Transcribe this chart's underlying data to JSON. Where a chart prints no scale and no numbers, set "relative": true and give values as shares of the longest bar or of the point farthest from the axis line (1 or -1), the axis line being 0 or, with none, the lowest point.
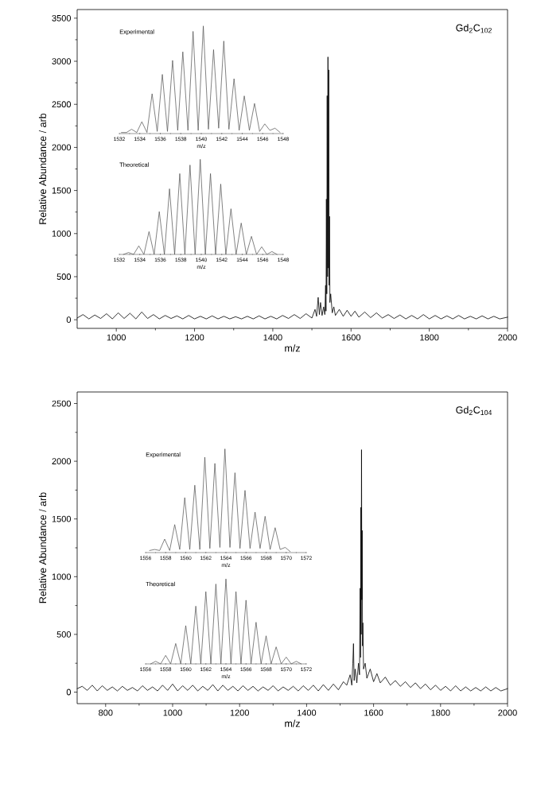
{
  "chart_data": [
    {
      "type": "line",
      "title": "Gd$_{2}$C$_{102}$",
      "xlabel": "m/z",
      "ylabel": "Relative Abundance / arb",
      "color": "#000000",
      "xlim": [
        900,
        2000
      ],
      "ylim": [
        -100,
        3600
      ],
      "xticks": [
        1000,
        1200,
        1400,
        1600,
        1800,
        2000
      ],
      "yticks": [
        0,
        500,
        1000,
        1500,
        2000,
        2500,
        3000,
        3500
      ],
      "x": [
        900,
        915,
        930,
        945,
        960,
        975,
        990,
        1005,
        1020,
        1035,
        1050,
        1065,
        1080,
        1095,
        1110,
        1125,
        1140,
        1155,
        1170,
        1185,
        1200,
        1215,
        1230,
        1245,
        1260,
        1275,
        1290,
        1305,
        1320,
        1335,
        1350,
        1365,
        1380,
        1395,
        1410,
        1425,
        1440,
        1455,
        1470,
        1485,
        1500,
        1508,
        1512,
        1516,
        1519,
        1522,
        1526,
        1530,
        1533,
        1535,
        1536,
        1537,
        1538,
        1539,
        1540,
        1541,
        1542,
        1543,
        1544,
        1545,
        1546,
        1548,
        1552,
        1556,
        1560,
        1570,
        1580,
        1590,
        1600,
        1610,
        1620,
        1635,
        1650,
        1665,
        1680,
        1695,
        1710,
        1725,
        1740,
        1755,
        1770,
        1785,
        1800,
        1815,
        1830,
        1845,
        1860,
        1875,
        1890,
        1905,
        1920,
        1935,
        1950,
        1965,
        1980,
        2000
      ],
      "values": [
        20,
        60,
        10,
        55,
        15,
        70,
        10,
        80,
        15,
        75,
        10,
        90,
        15,
        60,
        10,
        50,
        15,
        45,
        10,
        50,
        10,
        40,
        10,
        45,
        10,
        40,
        10,
        35,
        10,
        40,
        10,
        45,
        10,
        40,
        10,
        50,
        15,
        60,
        15,
        70,
        20,
        120,
        40,
        260,
        60,
        200,
        50,
        150,
        60,
        400,
        100,
        1400,
        300,
        2600,
        500,
        3050,
        600,
        2900,
        400,
        1200,
        200,
        300,
        80,
        150,
        50,
        120,
        40,
        110,
        40,
        100,
        30,
        90,
        25,
        80,
        20,
        60,
        15,
        55,
        10,
        50,
        10,
        60,
        10,
        50,
        10,
        45,
        10,
        50,
        10,
        40,
        10,
        45,
        10,
        40,
        10,
        30
      ]
    },
    {
      "type": "line",
      "title": "Experimental",
      "xlabel": "m/z",
      "relative": true,
      "color": "#4d4d4d",
      "xlim": [
        1532,
        1548
      ],
      "xticks": [
        1532,
        1534,
        1536,
        1538,
        1540,
        1542,
        1544,
        1546,
        1548
      ],
      "x": [
        1532.2,
        1532.7,
        1533.2,
        1533.7,
        1534.2,
        1534.7,
        1535.2,
        1535.7,
        1536.2,
        1536.7,
        1537.2,
        1537.7,
        1538.2,
        1538.7,
        1539.2,
        1539.7,
        1540.2,
        1540.7,
        1541.2,
        1541.7,
        1542.2,
        1542.7,
        1543.2,
        1543.7,
        1544.2,
        1544.7,
        1545.2,
        1545.7,
        1546.2,
        1546.7,
        1547.2,
        1547.7
      ],
      "values": [
        0.01,
        0.01,
        0.04,
        0.01,
        0.11,
        0.01,
        0.37,
        0.02,
        0.55,
        0.02,
        0.68,
        0.03,
        0.76,
        0.03,
        0.95,
        0.03,
        1,
        0.04,
        0.78,
        0.05,
        0.86,
        0.04,
        0.51,
        0.03,
        0.35,
        0.03,
        0.28,
        0.02,
        0.09,
        0.03,
        0.05,
        0.01
      ]
    },
    {
      "type": "line",
      "title": "Theoretical",
      "xlabel": "m/z",
      "relative": true,
      "color": "#4d4d4d",
      "xlim": [
        1532,
        1548
      ],
      "xticks": [
        1532,
        1534,
        1536,
        1538,
        1540,
        1542,
        1544,
        1546,
        1548
      ],
      "x": [
        1532.4,
        1532.9,
        1533.4,
        1533.9,
        1534.4,
        1534.9,
        1535.4,
        1535.9,
        1536.4,
        1536.9,
        1537.4,
        1537.9,
        1538.4,
        1538.9,
        1539.4,
        1539.9,
        1540.4,
        1540.9,
        1541.4,
        1541.9,
        1542.4,
        1542.9,
        1543.4,
        1543.9,
        1544.4,
        1544.9,
        1545.4,
        1545.9,
        1546.4,
        1546.9,
        1547.4
      ],
      "values": [
        0,
        0.02,
        0,
        0.09,
        0,
        0.24,
        0,
        0.45,
        0,
        0.69,
        0,
        0.85,
        0,
        0.94,
        0,
        1,
        0,
        0.85,
        0,
        0.74,
        0,
        0.48,
        0,
        0.33,
        0,
        0.19,
        0,
        0.08,
        0,
        0.03,
        0
      ]
    },
    {
      "type": "line",
      "title": "Gd$_{2}$C$_{104}$",
      "xlabel": "m/z",
      "ylabel": "Relative Abundance / arb",
      "color": "#000000",
      "xlim": [
        715,
        2000
      ],
      "ylim": [
        -100,
        2600
      ],
      "xticks": [
        800,
        1000,
        1200,
        1400,
        1600,
        1800,
        2000
      ],
      "yticks": [
        0,
        500,
        1000,
        1500,
        2000,
        2500
      ],
      "x": [
        715,
        730,
        745,
        760,
        775,
        790,
        805,
        820,
        835,
        850,
        865,
        880,
        895,
        910,
        925,
        940,
        955,
        970,
        985,
        1000,
        1015,
        1030,
        1045,
        1060,
        1075,
        1090,
        1105,
        1120,
        1135,
        1150,
        1165,
        1180,
        1195,
        1210,
        1225,
        1240,
        1255,
        1270,
        1285,
        1300,
        1315,
        1330,
        1345,
        1360,
        1375,
        1390,
        1405,
        1420,
        1435,
        1450,
        1465,
        1480,
        1495,
        1510,
        1520,
        1530,
        1535,
        1538,
        1540,
        1542,
        1545,
        1550,
        1555,
        1558,
        1560,
        1561,
        1562,
        1563,
        1564,
        1565,
        1566,
        1567,
        1568,
        1570,
        1575,
        1580,
        1590,
        1600,
        1610,
        1620,
        1635,
        1650,
        1665,
        1680,
        1695,
        1710,
        1725,
        1740,
        1755,
        1770,
        1785,
        1800,
        1815,
        1830,
        1845,
        1860,
        1875,
        1890,
        1905,
        1920,
        1935,
        1950,
        1965,
        1980,
        2000
      ],
      "values": [
        30,
        50,
        15,
        60,
        10,
        55,
        15,
        45,
        10,
        50,
        15,
        40,
        10,
        55,
        15,
        45,
        10,
        60,
        15,
        70,
        10,
        55,
        15,
        60,
        10,
        50,
        15,
        65,
        10,
        60,
        15,
        50,
        10,
        55,
        15,
        50,
        10,
        45,
        15,
        55,
        10,
        45,
        15,
        50,
        10,
        55,
        15,
        60,
        10,
        65,
        15,
        70,
        20,
        90,
        60,
        150,
        60,
        250,
        420,
        100,
        200,
        80,
        250,
        150,
        900,
        300,
        1600,
        500,
        2100,
        800,
        1400,
        400,
        600,
        200,
        250,
        120,
        200,
        90,
        160,
        80,
        130,
        60,
        100,
        50,
        90,
        40,
        80,
        30,
        70,
        20,
        60,
        15,
        50,
        10,
        55,
        10,
        45,
        10,
        40,
        10,
        45,
        10,
        40,
        10,
        30
      ]
    },
    {
      "type": "line",
      "title": "Experimental",
      "xlabel": "m/z",
      "relative": true,
      "color": "#4d4d4d",
      "xlim": [
        1556,
        1572
      ],
      "xticks": [
        1556,
        1558,
        1560,
        1562,
        1564,
        1566,
        1568,
        1570,
        1572
      ],
      "x": [
        1556.4,
        1556.9,
        1557.4,
        1557.9,
        1558.4,
        1558.9,
        1559.4,
        1559.9,
        1560.4,
        1560.9,
        1561.4,
        1561.9,
        1562.4,
        1562.9,
        1563.4,
        1563.9,
        1564.4,
        1564.9,
        1565.4,
        1565.9,
        1566.4,
        1566.9,
        1567.4,
        1567.9,
        1568.4,
        1568.9,
        1569.4,
        1569.9,
        1570.4
      ],
      "values": [
        0.02,
        0.03,
        0.02,
        0.13,
        0.02,
        0.27,
        0.03,
        0.53,
        0.03,
        0.65,
        0.03,
        0.92,
        0.04,
        0.86,
        0.05,
        1,
        0.05,
        0.77,
        0.04,
        0.6,
        0.04,
        0.39,
        0.04,
        0.35,
        0.03,
        0.24,
        0.03,
        0.05,
        0.01
      ]
    },
    {
      "type": "line",
      "title": "Theoretical",
      "xlabel": "m/z",
      "relative": true,
      "color": "#4d4d4d",
      "xlim": [
        1556,
        1572
      ],
      "xticks": [
        1556,
        1558,
        1560,
        1562,
        1564,
        1566,
        1568,
        1570,
        1572
      ],
      "x": [
        1556.5,
        1557,
        1557.5,
        1558,
        1558.5,
        1559,
        1559.5,
        1560,
        1560.5,
        1561,
        1561.5,
        1562,
        1562.5,
        1563,
        1563.5,
        1564,
        1564.5,
        1565,
        1565.5,
        1566,
        1566.5,
        1567,
        1567.5,
        1568,
        1568.5,
        1569,
        1569.5,
        1570,
        1570.5,
        1571,
        1571.5
      ],
      "values": [
        0,
        0.03,
        0,
        0.1,
        0,
        0.24,
        0,
        0.45,
        0,
        0.68,
        0,
        0.85,
        0,
        0.94,
        0,
        1,
        0,
        0.85,
        0,
        0.75,
        0,
        0.49,
        0,
        0.33,
        0,
        0.2,
        0,
        0.08,
        0,
        0.03,
        0
      ]
    }
  ]
}
